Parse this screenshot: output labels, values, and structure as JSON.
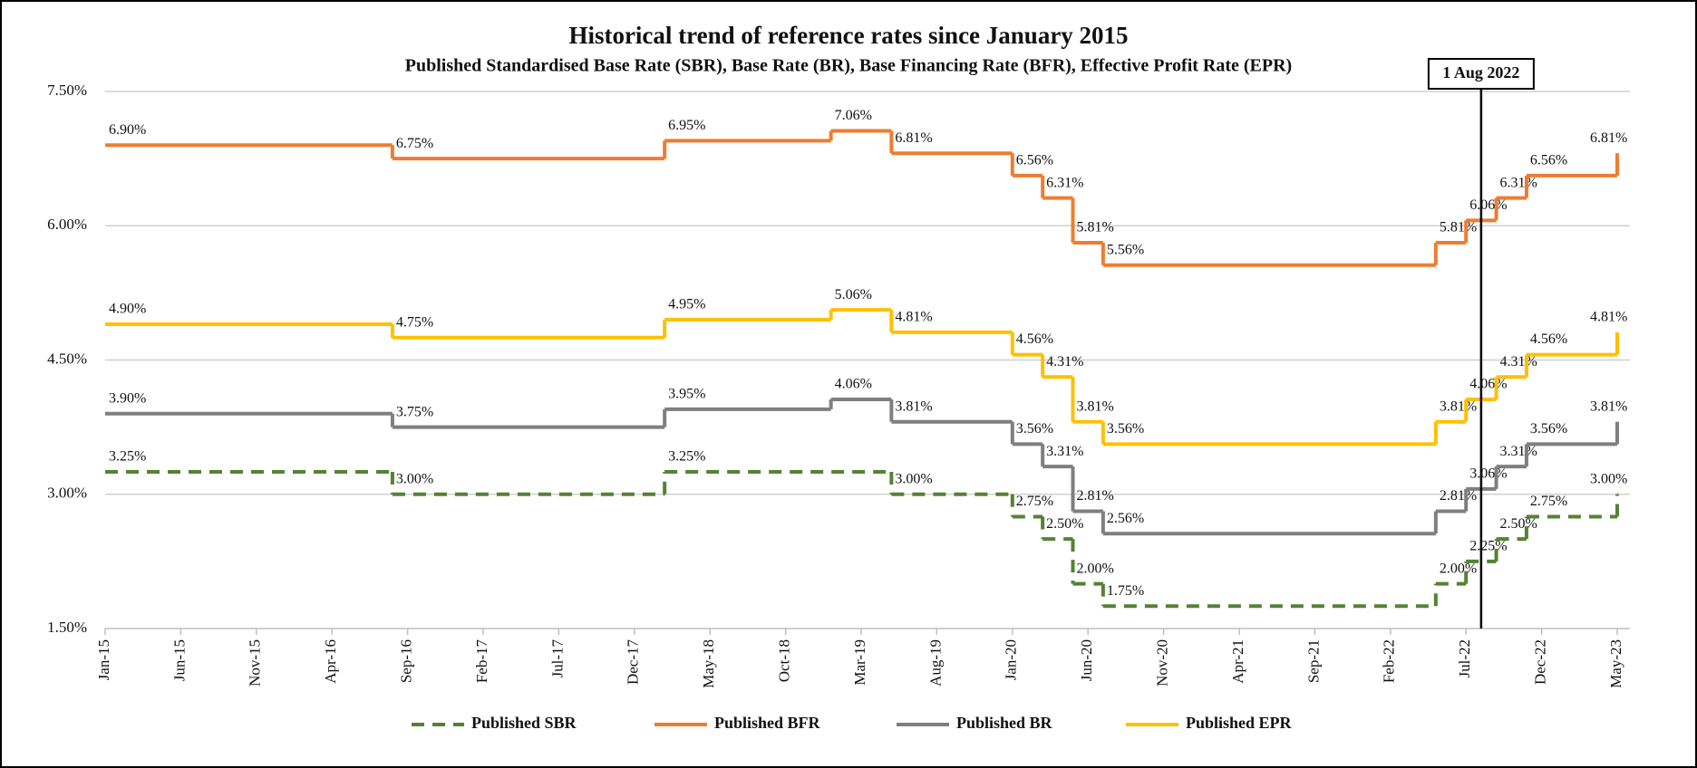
{
  "chart_data": {
    "type": "step",
    "title": "Historical trend of reference rates since January 2015",
    "subtitle": "Published Standardised Base Rate (SBR), Base Rate (BR), Base Financing Rate (BFR), Effective Profit Rate (EPR)",
    "xlim": [
      "Jan-15",
      "May-23"
    ],
    "xticks": [
      "Jan-15",
      "Jun-15",
      "Nov-15",
      "Apr-16",
      "Sep-16",
      "Feb-17",
      "Jul-17",
      "Dec-17",
      "May-18",
      "Oct-18",
      "Mar-19",
      "Aug-19",
      "Jan-20",
      "Jun-20",
      "Nov-20",
      "Apr-21",
      "Sep-21",
      "Feb-22",
      "Jul-22",
      "Dec-22",
      "May-23"
    ],
    "ylim": [
      1.5,
      7.5
    ],
    "yticks": [
      {
        "value": 1.5,
        "label": "1.50%"
      },
      {
        "value": 3.0,
        "label": "3.00%"
      },
      {
        "value": 4.5,
        "label": "4.50%"
      },
      {
        "value": 6.0,
        "label": "6.00%"
      },
      {
        "value": 7.5,
        "label": "7.50%"
      }
    ],
    "grid": true,
    "annotation": {
      "text": "1 Aug 2022",
      "x": "Aug-22"
    },
    "series": [
      {
        "name": "Published SBR",
        "color": "#548235",
        "dashed": true,
        "x": [
          "Jan-15",
          "Aug-16",
          "Feb-18",
          "May-19",
          "Jan-20",
          "Mar-20",
          "May-20",
          "Jul-20",
          "May-22",
          "Jul-22",
          "Sep-22",
          "Nov-22",
          "May-23"
        ],
        "values": [
          3.25,
          3.0,
          3.25,
          3.0,
          2.75,
          2.5,
          2.0,
          1.75,
          2.0,
          2.25,
          2.5,
          2.75,
          3.0
        ],
        "value_labels": [
          "3.25%",
          "3.00%",
          "3.25%",
          "3.00%",
          "2.75%",
          "2.50%",
          "2.00%",
          "1.75%",
          "2.00%",
          "2.25%",
          "2.50%",
          "2.75%",
          "3.00%"
        ]
      },
      {
        "name": "Published BFR",
        "color": "#ED7D31",
        "dashed": false,
        "x": [
          "Jan-15",
          "Aug-16",
          "Feb-18",
          "Jan-19",
          "May-19",
          "Jan-20",
          "Mar-20",
          "May-20",
          "Jul-20",
          "May-22",
          "Jul-22",
          "Sep-22",
          "Nov-22",
          "May-23"
        ],
        "values": [
          6.9,
          6.75,
          6.95,
          7.06,
          6.81,
          6.56,
          6.31,
          5.81,
          5.56,
          5.81,
          6.06,
          6.31,
          6.56,
          6.81
        ],
        "value_labels": [
          "6.90%",
          "6.75%",
          "6.95%",
          "7.06%",
          "6.81%",
          "6.56%",
          "6.31%",
          "5.81%",
          "5.56%",
          "5.81%",
          "6.06%",
          "6.31%",
          "6.56%",
          "6.81%"
        ]
      },
      {
        "name": "Published BR",
        "color": "#7F7F7F",
        "dashed": false,
        "x": [
          "Jan-15",
          "Aug-16",
          "Feb-18",
          "Jan-19",
          "May-19",
          "Jan-20",
          "Mar-20",
          "May-20",
          "Jul-20",
          "May-22",
          "Jul-22",
          "Sep-22",
          "Nov-22",
          "May-23"
        ],
        "values": [
          3.9,
          3.75,
          3.95,
          4.06,
          3.81,
          3.56,
          3.31,
          2.81,
          2.56,
          2.81,
          3.06,
          3.31,
          3.56,
          3.81
        ],
        "value_labels": [
          "3.90%",
          "3.75%",
          "3.95%",
          "4.06%",
          "3.81%",
          "3.56%",
          "3.31%",
          "2.81%",
          "2.56%",
          "2.81%",
          "3.06%",
          "3.31%",
          "3.56%",
          "3.81%"
        ]
      },
      {
        "name": "Published EPR",
        "color": "#FFC000",
        "dashed": false,
        "x": [
          "Jan-15",
          "Aug-16",
          "Feb-18",
          "Jan-19",
          "May-19",
          "Jan-20",
          "Mar-20",
          "May-20",
          "Jul-20",
          "May-22",
          "Jul-22",
          "Sep-22",
          "Nov-22",
          "May-23"
        ],
        "values": [
          4.9,
          4.75,
          4.95,
          5.06,
          4.81,
          4.56,
          4.31,
          3.81,
          3.56,
          3.81,
          4.06,
          4.31,
          4.56,
          4.81
        ],
        "value_labels": [
          "4.90%",
          "4.75%",
          "4.95%",
          "5.06%",
          "4.81%",
          "4.56%",
          "4.31%",
          "3.81%",
          "3.56%",
          "3.81%",
          "4.06%",
          "4.31%",
          "4.56%",
          "4.81%"
        ]
      }
    ]
  }
}
